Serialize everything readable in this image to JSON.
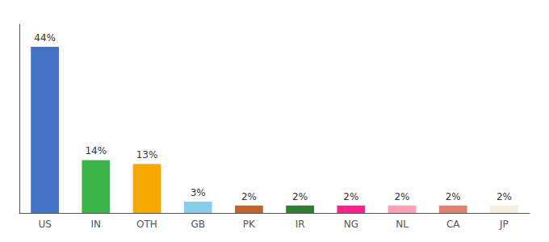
{
  "chart_data": {
    "type": "bar",
    "categories": [
      "US",
      "IN",
      "OTH",
      "GB",
      "PK",
      "IR",
      "NG",
      "NL",
      "CA",
      "JP"
    ],
    "values": [
      44,
      14,
      13,
      3,
      2,
      2,
      2,
      2,
      2,
      2
    ],
    "value_labels": [
      "44%",
      "14%",
      "13%",
      "3%",
      "2%",
      "2%",
      "2%",
      "2%",
      "2%",
      "2%"
    ],
    "colors": [
      "#4472c4",
      "#3cb54a",
      "#f5a800",
      "#87ceeb",
      "#c0622a",
      "#2e7d32",
      "#ff1f8e",
      "#ff9eb5",
      "#e08070",
      "#f5f0dc"
    ],
    "ylim": [
      0,
      50
    ],
    "grid": false,
    "data_labels": true,
    "tick_labels": "x"
  }
}
